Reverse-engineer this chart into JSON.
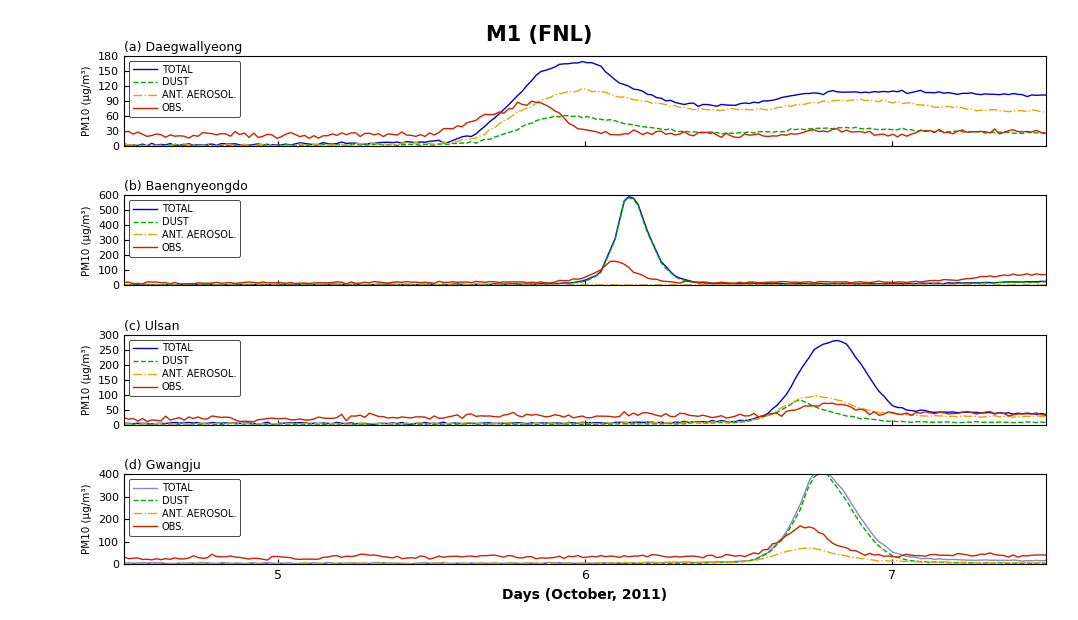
{
  "title": "M1 (FNL)",
  "title_fontsize": 15,
  "title_fontweight": "bold",
  "subplots": [
    {
      "label": "(a) Daegwallyeong",
      "ylim": [
        0,
        180
      ],
      "yticks": [
        0,
        30,
        60,
        90,
        120,
        150,
        180
      ]
    },
    {
      "label": "(b) Baengnyeongdo",
      "ylim": [
        0,
        600
      ],
      "yticks": [
        0,
        100,
        200,
        300,
        400,
        500,
        600
      ]
    },
    {
      "label": "(c) Ulsan",
      "ylim": [
        0,
        300
      ],
      "yticks": [
        0,
        50,
        100,
        150,
        200,
        250,
        300
      ]
    },
    {
      "label": "(d) Gwangju",
      "ylim": [
        0,
        400
      ],
      "yticks": [
        0,
        100,
        200,
        300,
        400
      ]
    }
  ],
  "xlim": [
    4.5,
    7.5
  ],
  "xticks": [
    5,
    6,
    7
  ],
  "xlabel": "Days (October, 2011)",
  "colors": {
    "total_a": "#0000cc",
    "total_b": "#0000cc",
    "total_c": "#0000cc",
    "total_d": "#8888cc",
    "dust": "#00aa00",
    "ant": "#ddaa00",
    "obs": "#cc2200"
  },
  "legend_labels": [
    "TOTAL",
    "DUST",
    "ANT. AEROSOL.",
    "OBS."
  ],
  "n_points": 200
}
